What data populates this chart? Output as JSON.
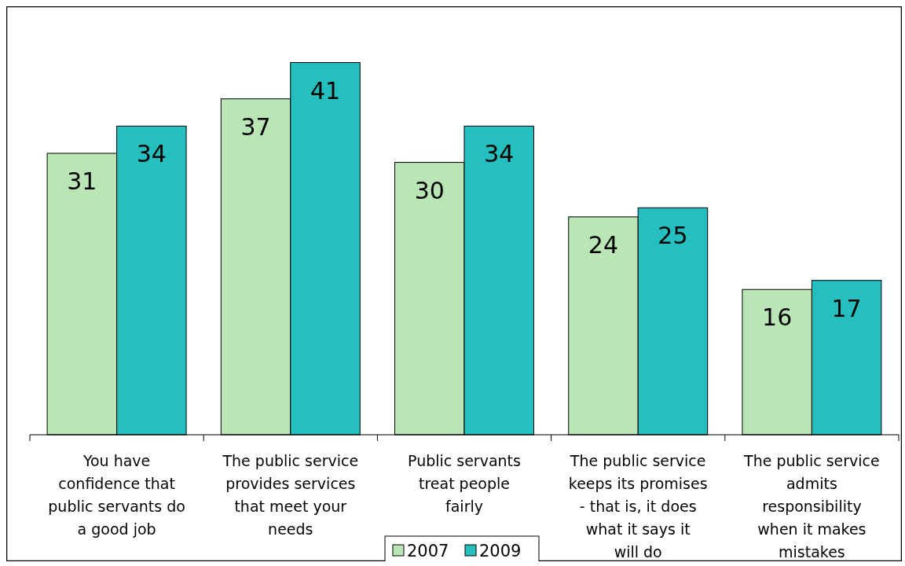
{
  "chart_data": {
    "type": "bar",
    "categories": [
      "You have confidence that public servants do a good job",
      "The public service provides services that meet your needs",
      "Public servants treat people fairly",
      "The public service keeps its promises - that is, it does what it says it will do",
      "The public service admits responsibility when it makes mistakes"
    ],
    "series": [
      {
        "name": "2007",
        "color": "#b9e6b4",
        "values": [
          31,
          37,
          30,
          24,
          16
        ]
      },
      {
        "name": "2009",
        "color": "#26bfbf",
        "values": [
          34,
          41,
          34,
          25,
          17
        ]
      }
    ],
    "data_labels": true,
    "legend": "bottom"
  }
}
